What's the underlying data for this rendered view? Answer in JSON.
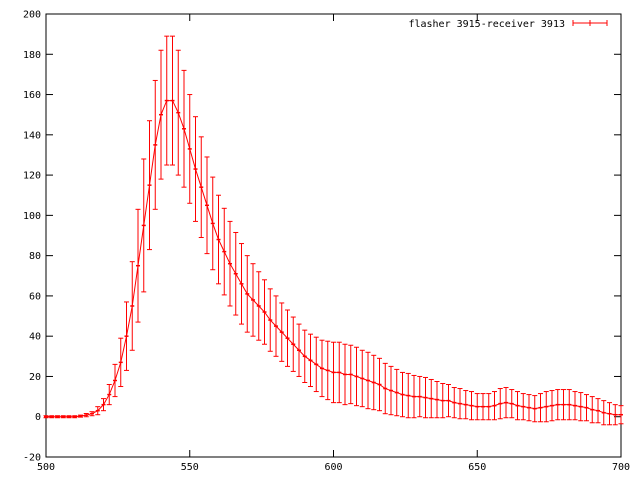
{
  "chart_data": {
    "type": "line",
    "style": "errorbars",
    "title": "",
    "xlabel": "",
    "ylabel": "",
    "xlim": [
      500,
      700
    ],
    "ylim": [
      -20,
      200
    ],
    "xticks": [
      500,
      550,
      600,
      650,
      700
    ],
    "yticks": [
      -20,
      0,
      20,
      40,
      60,
      80,
      100,
      120,
      140,
      160,
      180,
      200
    ],
    "grid": false,
    "legend_position": "top-right",
    "series": [
      {
        "name": "flasher 3915-receiver 3913",
        "color": "#ff0000",
        "x": [
          500,
          502,
          504,
          506,
          508,
          510,
          512,
          514,
          516,
          518,
          520,
          522,
          524,
          526,
          528,
          530,
          532,
          534,
          536,
          538,
          540,
          542,
          544,
          546,
          548,
          550,
          552,
          554,
          556,
          558,
          560,
          562,
          564,
          566,
          568,
          570,
          572,
          574,
          576,
          578,
          580,
          582,
          584,
          586,
          588,
          590,
          592,
          594,
          596,
          598,
          600,
          602,
          604,
          606,
          608,
          610,
          612,
          614,
          616,
          618,
          620,
          622,
          624,
          626,
          628,
          630,
          632,
          634,
          636,
          638,
          640,
          642,
          644,
          646,
          648,
          650,
          652,
          654,
          656,
          658,
          660,
          662,
          664,
          666,
          668,
          670,
          672,
          674,
          676,
          678,
          680,
          682,
          684,
          686,
          688,
          690,
          692,
          694,
          696,
          698,
          700
        ],
        "y": [
          0,
          0,
          0,
          0,
          0,
          0,
          0.3,
          0.8,
          1.5,
          3,
          6,
          11,
          18,
          27,
          40,
          55,
          75,
          95,
          115,
          135,
          150,
          157,
          157,
          151,
          143,
          133,
          123,
          114,
          105,
          96,
          88,
          82,
          76,
          71,
          66,
          61,
          58,
          55,
          52,
          48,
          45,
          42,
          39,
          36,
          33,
          30,
          28,
          26,
          24,
          23,
          22,
          22,
          21,
          21,
          20,
          19,
          18,
          17,
          16,
          14,
          13,
          12,
          11,
          10.5,
          10,
          10,
          9.5,
          9,
          8.5,
          8,
          8,
          7,
          6.5,
          6,
          5.5,
          5,
          5,
          5,
          5.5,
          6.5,
          7,
          6.5,
          5.5,
          5,
          4.5,
          4,
          4.5,
          5,
          5.5,
          6,
          6,
          6,
          5.5,
          5,
          4.5,
          3.5,
          3,
          2,
          1.5,
          1,
          1
        ],
        "error": [
          0.5,
          0.5,
          0.5,
          0.5,
          0.5,
          0.5,
          0.5,
          0.8,
          1,
          2,
          3,
          5,
          8,
          12,
          17,
          22,
          28,
          33,
          32,
          32,
          32,
          32,
          32,
          31,
          29,
          27,
          26,
          25,
          24,
          23,
          22,
          21.5,
          21,
          20.5,
          20,
          19,
          18,
          17,
          16,
          15.5,
          15,
          14.5,
          14,
          13.5,
          13,
          13,
          13,
          13.5,
          14,
          14.5,
          15,
          15,
          15,
          14.5,
          14.5,
          14,
          14,
          13.5,
          13,
          12.5,
          12,
          11.5,
          11,
          11,
          10.5,
          10,
          10,
          9.5,
          9,
          8.5,
          8,
          7.5,
          7.5,
          7,
          7,
          6.5,
          6.5,
          6.5,
          7,
          7.5,
          7.5,
          7,
          7,
          6.5,
          6.5,
          6.5,
          7,
          7.5,
          7.5,
          7.5,
          7.5,
          7.5,
          7,
          7,
          6.5,
          6.5,
          6,
          6,
          5.5,
          5,
          4.5
        ]
      }
    ]
  }
}
